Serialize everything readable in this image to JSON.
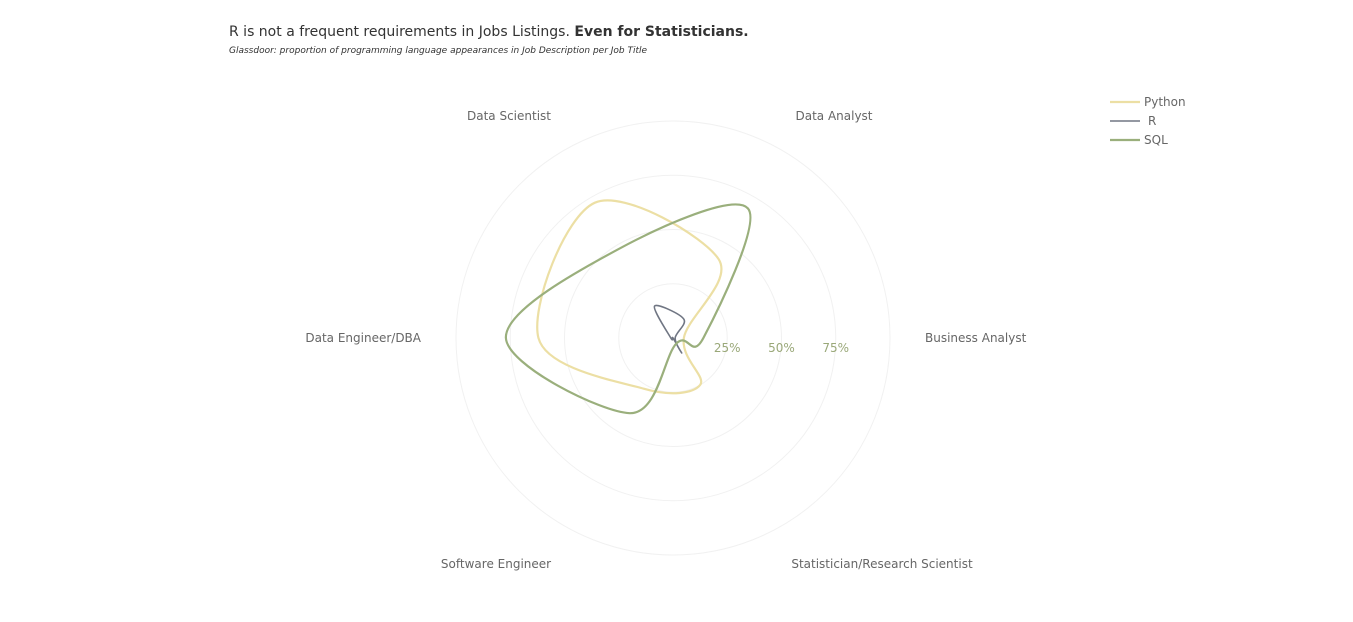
{
  "chart_data": {
    "type": "radar",
    "title_main": "R is not a frequent requirements in Jobs Listings.",
    "title_bold": "Even for Statisticians.",
    "subtitle": "Glassdoor: proportion of programming language appearances in Job Description per Job Title",
    "categories": [
      "Business Analyst",
      "Data Analyst",
      "Data Scientist",
      "Data Engineer/DBA",
      "Software Engineer",
      "Statistician/Research Scientist"
    ],
    "radial_range": [
      0,
      100
    ],
    "radial_ticks": [
      25,
      50,
      75
    ],
    "radial_tick_labels": [
      "25%",
      "50%",
      "75%"
    ],
    "grid": true,
    "legend_position": "top-right",
    "series": [
      {
        "name": "Python",
        "color": "#ecdfa4",
        "values": [
          5,
          42,
          72,
          62,
          27,
          25
        ]
      },
      {
        "name": "R",
        "color": "#707683",
        "values": [
          1,
          10,
          17,
          1,
          0,
          8
        ]
      },
      {
        "name": "SQL",
        "color": "#9aaf7c",
        "values": [
          14,
          69,
          48,
          77,
          40,
          3
        ]
      }
    ]
  }
}
